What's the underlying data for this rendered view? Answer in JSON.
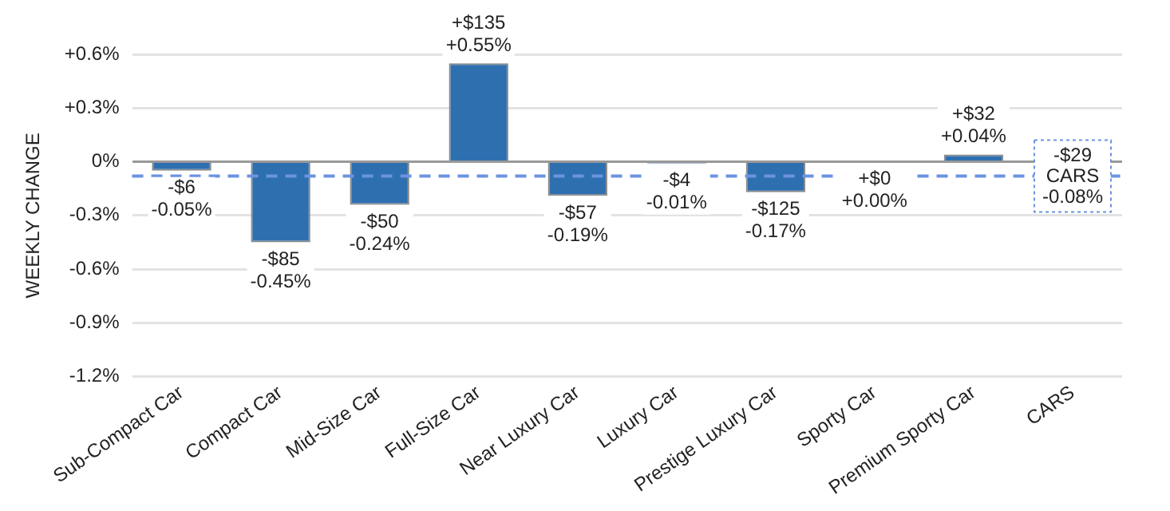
{
  "chart_data": {
    "type": "bar",
    "ylabel": "WEEKLY CHANGE",
    "categories": [
      "Sub-Compact Car",
      "Compact Car",
      "Mid-Size Car",
      "Full-Size Car",
      "Near Luxury Car",
      "Luxury Car",
      "Prestige Luxury Car",
      "Sporty Car",
      "Premium Sporty Car",
      "CARS"
    ],
    "values": [
      -0.05,
      -0.45,
      -0.24,
      0.55,
      -0.19,
      -0.01,
      -0.17,
      0.0,
      0.04,
      null
    ],
    "value_labels": [
      "-$6\n-0.05%",
      "-$85\n-0.45%",
      "-$50\n-0.24%",
      "+$135\n+0.55%",
      "-$57\n-0.19%",
      "-$4\n-0.01%",
      "-$125\n-0.17%",
      "+$0\n+0.00%",
      "+$32\n+0.04%",
      null
    ],
    "color": "#2e6fb0",
    "ylim": [
      -1.2,
      0.6
    ],
    "yticks": [
      {
        "value": -1.2,
        "label": "-1.2%"
      },
      {
        "value": -0.9,
        "label": "-0.9%"
      },
      {
        "value": -0.6,
        "label": "-0.6%"
      },
      {
        "value": -0.3,
        "label": "-0.3%"
      },
      {
        "value": 0,
        "label": "0%"
      },
      {
        "value": 0.3,
        "label": "+0.3%"
      },
      {
        "value": 0.6,
        "label": "+0.6%"
      }
    ],
    "ref_lines": [
      {
        "axis": "y",
        "value": -0.08,
        "label": "-$29\nCARS\n-0.08%",
        "color": "#6b93e0",
        "line_style": "dashed"
      }
    ],
    "grid": "y",
    "legend": false
  }
}
